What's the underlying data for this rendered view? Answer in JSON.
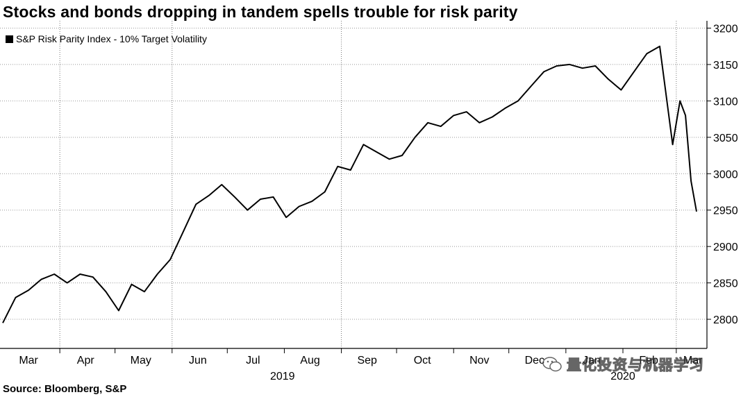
{
  "chart_data": {
    "type": "line",
    "title": "Stocks and bonds dropping in tandem spells trouble for risk parity",
    "source": "Source: Bloomberg, S&P",
    "series": [
      {
        "name": "S&P Risk Parity Index - 10% Target Volatility",
        "x": [
          "2019-03-01",
          "2019-03-08",
          "2019-03-15",
          "2019-03-22",
          "2019-03-29",
          "2019-04-05",
          "2019-04-12",
          "2019-04-19",
          "2019-04-26",
          "2019-05-03",
          "2019-05-10",
          "2019-05-17",
          "2019-05-24",
          "2019-05-31",
          "2019-06-07",
          "2019-06-14",
          "2019-06-21",
          "2019-06-28",
          "2019-07-05",
          "2019-07-12",
          "2019-07-19",
          "2019-07-26",
          "2019-08-02",
          "2019-08-09",
          "2019-08-16",
          "2019-08-23",
          "2019-08-30",
          "2019-09-06",
          "2019-09-13",
          "2019-09-20",
          "2019-09-27",
          "2019-10-04",
          "2019-10-11",
          "2019-10-18",
          "2019-10-25",
          "2019-11-01",
          "2019-11-08",
          "2019-11-15",
          "2019-11-22",
          "2019-11-29",
          "2019-12-06",
          "2019-12-13",
          "2019-12-20",
          "2019-12-27",
          "2020-01-03",
          "2020-01-10",
          "2020-01-17",
          "2020-01-24",
          "2020-01-31",
          "2020-02-07",
          "2020-02-14",
          "2020-02-21",
          "2020-02-28",
          "2020-03-03",
          "2020-03-06",
          "2020-03-09",
          "2020-03-12"
        ],
        "values": [
          2795,
          2830,
          2840,
          2855,
          2862,
          2850,
          2862,
          2858,
          2838,
          2812,
          2848,
          2838,
          2862,
          2882,
          2920,
          2958,
          2970,
          2985,
          2968,
          2950,
          2965,
          2968,
          2940,
          2955,
          2962,
          2975,
          3010,
          3005,
          3040,
          3030,
          3020,
          3025,
          3050,
          3070,
          3065,
          3080,
          3085,
          3070,
          3078,
          3090,
          3100,
          3120,
          3140,
          3148,
          3150,
          3145,
          3148,
          3130,
          3115,
          3140,
          3165,
          3175,
          3040,
          3100,
          3080,
          2990,
          2948
        ]
      }
    ],
    "x_tick_labels": [
      "Mar",
      "Apr",
      "May",
      "Jun",
      "Jul",
      "Aug",
      "Sep",
      "Oct",
      "Nov",
      "Dec",
      "Jan",
      "Feb",
      "Mar"
    ],
    "x_year_labels": [
      "2019",
      "2020"
    ],
    "ylim": [
      2760,
      3210
    ],
    "y_ticks": [
      2800,
      2850,
      2900,
      2950,
      3000,
      3050,
      3100,
      3150,
      3200
    ],
    "grid": "horizontal dotted",
    "legend": "top-left",
    "line_color": "#000000"
  },
  "watermark": {
    "text": "量化投资与机器学习"
  }
}
